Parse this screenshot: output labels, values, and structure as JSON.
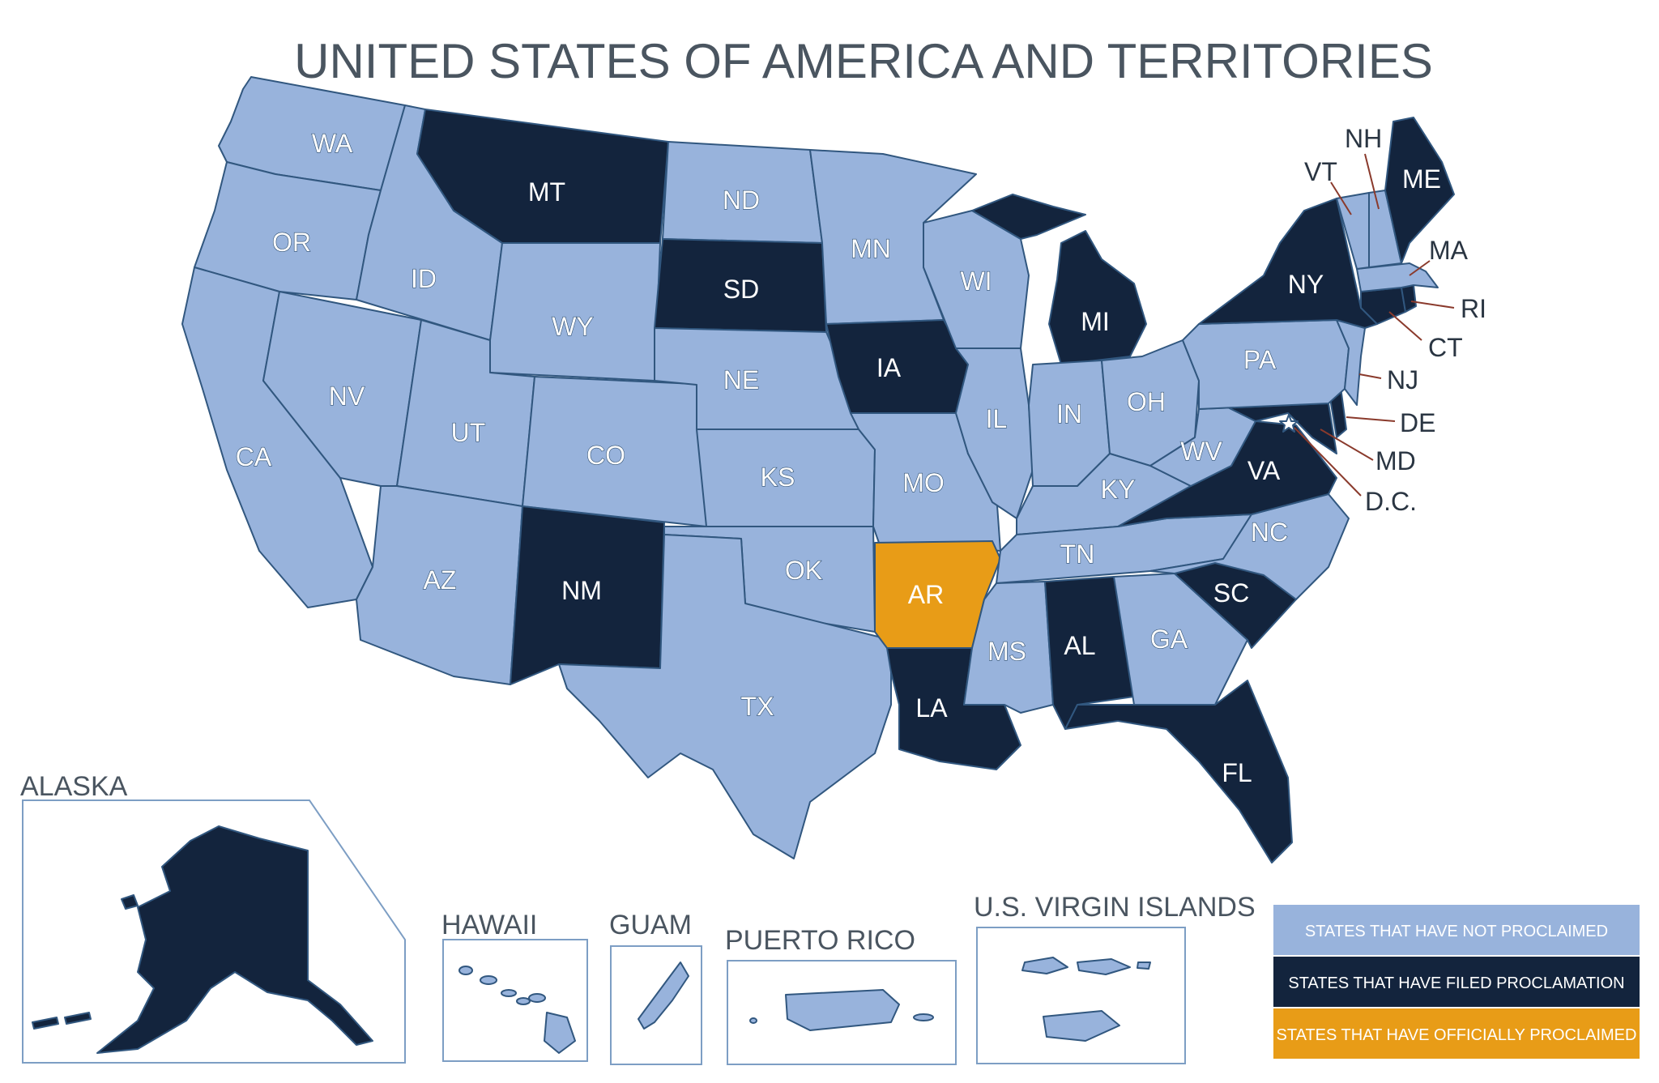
{
  "title": "UNITED STATES OF AMERICA AND TERRITORIES",
  "colors": {
    "not_proclaimed": "#98b3dc",
    "filed_proclamation": "#13243d",
    "officially_proclaimed": "#e89c17",
    "border": "#31577f"
  },
  "legend": [
    {
      "label": "STATES THAT HAVE NOT PROCLAIMED",
      "status": "not_proclaimed"
    },
    {
      "label": "STATES THAT HAVE FILED PROCLAMATION",
      "status": "filed_proclamation"
    },
    {
      "label": "STATES THAT HAVE OFFICIALLY PROCLAIMED",
      "status": "officially_proclaimed"
    }
  ],
  "states": {
    "WA": "not_proclaimed",
    "OR": "not_proclaimed",
    "CA": "not_proclaimed",
    "ID": "not_proclaimed",
    "NV": "not_proclaimed",
    "MT": "filed_proclamation",
    "WY": "not_proclaimed",
    "UT": "not_proclaimed",
    "AZ": "not_proclaimed",
    "CO": "not_proclaimed",
    "NM": "filed_proclamation",
    "ND": "not_proclaimed",
    "SD": "filed_proclamation",
    "NE": "not_proclaimed",
    "KS": "not_proclaimed",
    "OK": "not_proclaimed",
    "TX": "not_proclaimed",
    "MN": "not_proclaimed",
    "IA": "filed_proclamation",
    "MO": "not_proclaimed",
    "AR": "officially_proclaimed",
    "LA": "filed_proclamation",
    "WI": "not_proclaimed",
    "IL": "not_proclaimed",
    "MI": "filed_proclamation",
    "IN": "not_proclaimed",
    "OH": "not_proclaimed",
    "KY": "not_proclaimed",
    "TN": "not_proclaimed",
    "MS": "not_proclaimed",
    "AL": "filed_proclamation",
    "GA": "not_proclaimed",
    "FL": "filed_proclamation",
    "SC": "filed_proclamation",
    "NC": "not_proclaimed",
    "VA": "filed_proclamation",
    "WV": "not_proclaimed",
    "PA": "not_proclaimed",
    "NY": "filed_proclamation",
    "ME": "filed_proclamation",
    "NH": "not_proclaimed",
    "VT": "not_proclaimed",
    "MA": "not_proclaimed",
    "RI": "filed_proclamation",
    "CT": "filed_proclamation",
    "NJ": "not_proclaimed",
    "DE": "filed_proclamation",
    "MD": "filed_proclamation",
    "D.C.": "not_proclaimed"
  },
  "external_labels": [
    "NH",
    "VT",
    "MA",
    "RI",
    "CT",
    "NJ",
    "DE",
    "MD",
    "D.C."
  ],
  "insets": [
    {
      "label": "ALASKA",
      "status": "filed_proclamation"
    },
    {
      "label": "HAWAII",
      "status": "not_proclaimed"
    },
    {
      "label": "GUAM",
      "status": "not_proclaimed"
    },
    {
      "label": "PUERTO RICO",
      "status": "not_proclaimed"
    },
    {
      "label": "U.S. VIRGIN ISLANDS",
      "status": "not_proclaimed"
    }
  ]
}
